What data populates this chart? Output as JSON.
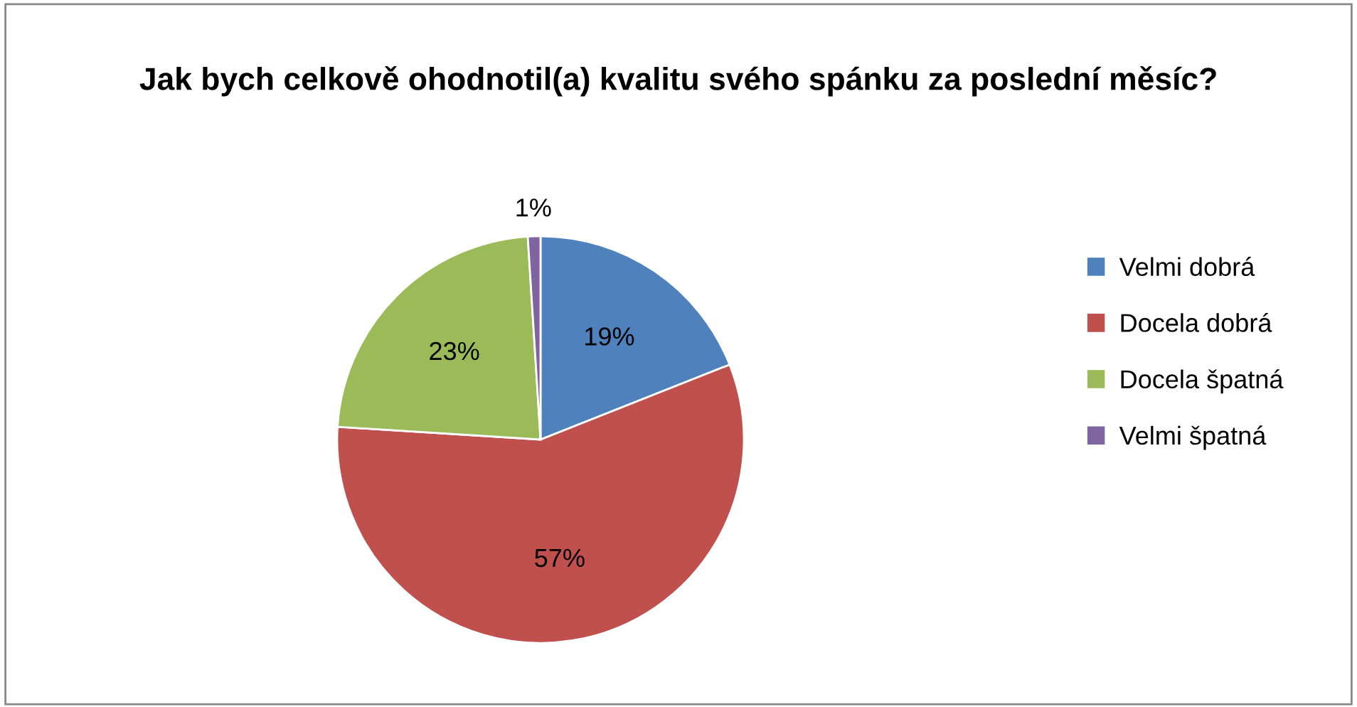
{
  "chart_data": {
    "type": "pie",
    "title": "Jak bych celkově ohodnotil(a) kvalitu svého spánku za poslední měsíc?",
    "categories": [
      "Velmi dobrá",
      "Docela dobrá",
      "Docela špatná",
      "Velmi špatná"
    ],
    "values": [
      19,
      57,
      23,
      1
    ],
    "value_labels": [
      "19%",
      "57%",
      "23%",
      "1%"
    ],
    "colors": [
      "#4f81bd",
      "#c0504d",
      "#9bbb59",
      "#8064a2"
    ],
    "legend": "right"
  }
}
